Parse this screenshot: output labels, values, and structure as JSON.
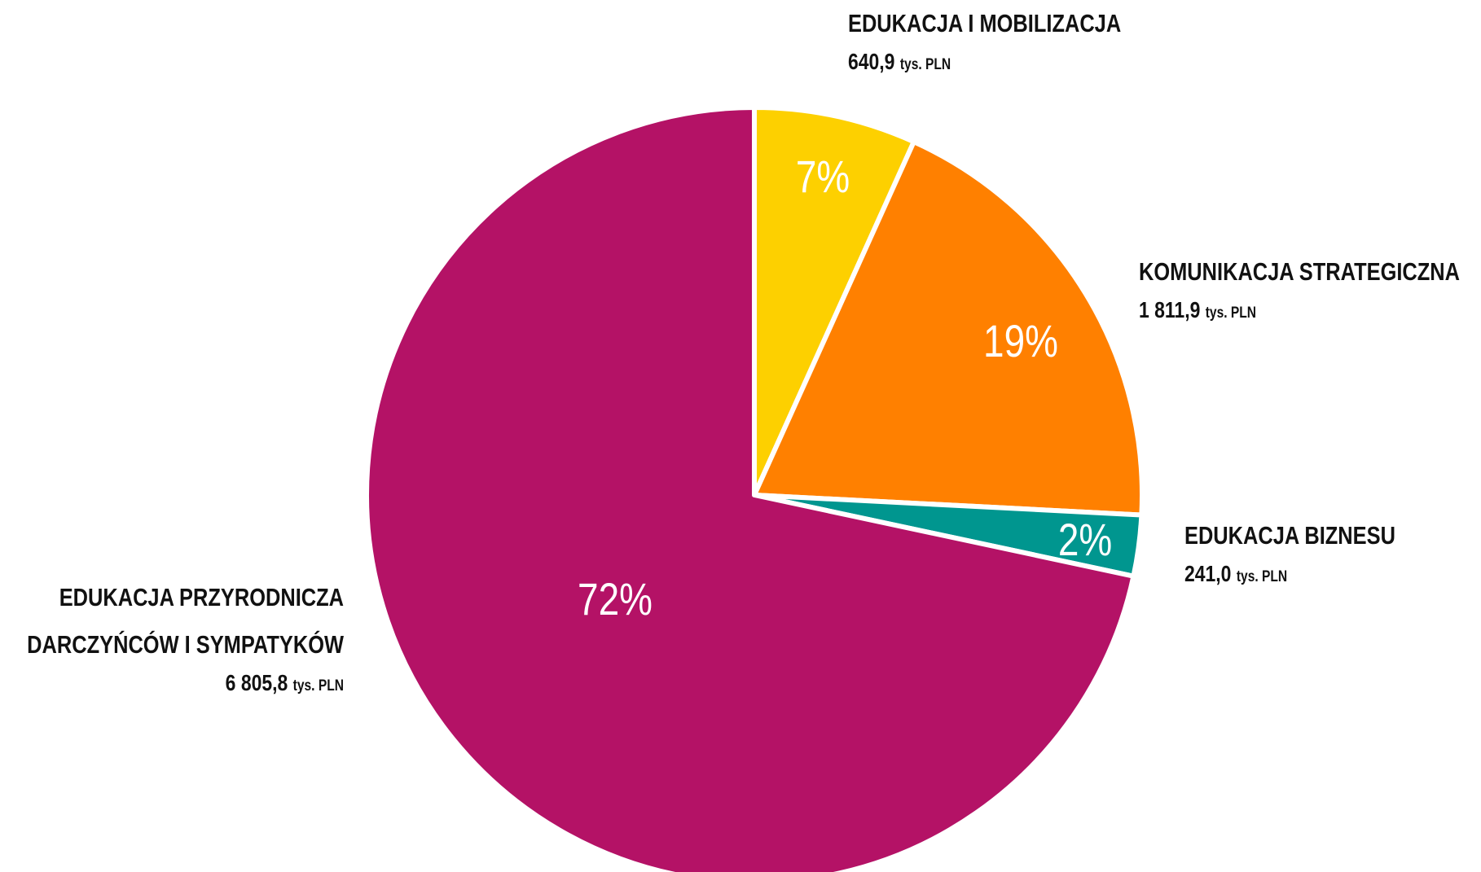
{
  "chart_data": {
    "type": "pie",
    "categories": [
      "EDUKACJA I MOBILIZACJA",
      "KOMUNIKACJA STRATEGICZNA",
      "EDUKACJA BIZNESU",
      "EDUKACJA PRZYRODNICZA DARCZYŃCÓW I SYMPATYKÓW"
    ],
    "values": [
      640.9,
      1811.9,
      241.0,
      6805.8
    ],
    "value_labels": [
      "640,9",
      "1 811,9",
      "241,0",
      "6 805,8"
    ],
    "unit": "tys. PLN",
    "percent_labels": [
      "7%",
      "19%",
      "2%",
      "72%"
    ],
    "colors": [
      "#FDD000",
      "#FF8000",
      "#00968F",
      "#B41266"
    ]
  }
}
